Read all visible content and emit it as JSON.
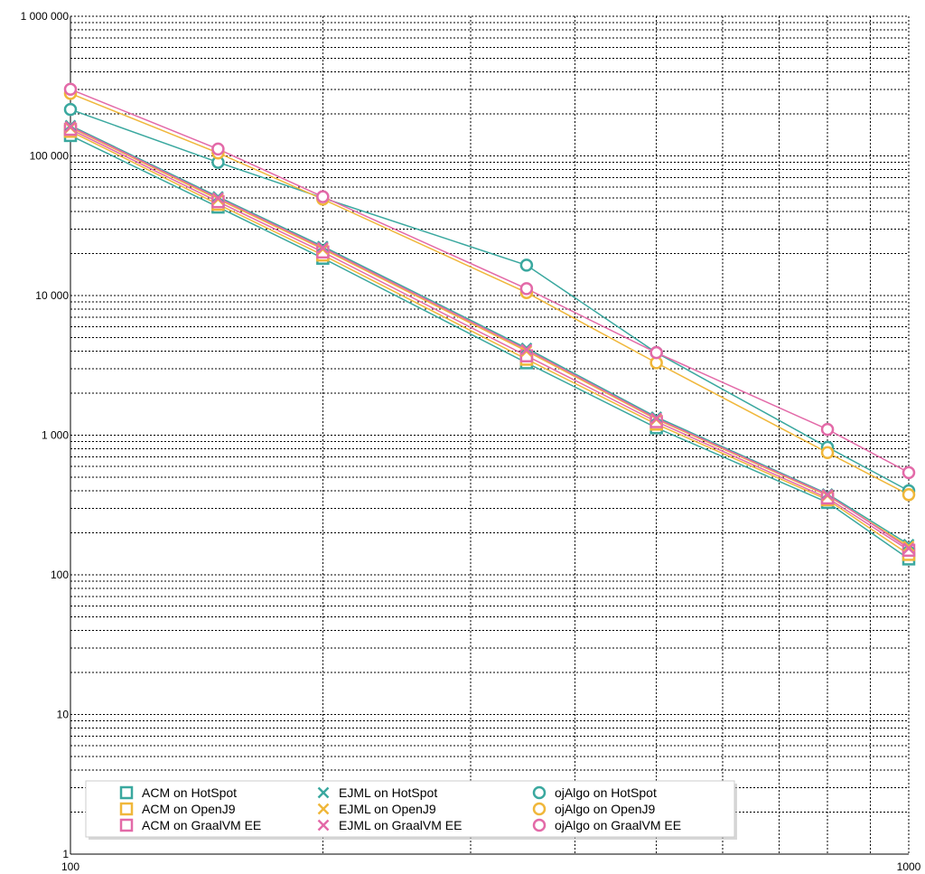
{
  "chart_data": {
    "type": "line",
    "x_scale": "log",
    "y_scale": "log",
    "xlim": [
      100,
      1000
    ],
    "ylim": [
      1,
      1000000
    ],
    "grid": true,
    "x_ticks": [
      {
        "value": 100,
        "label": "100"
      },
      {
        "value": 1000,
        "label": "1000"
      }
    ],
    "y_ticks": [
      {
        "value": 1,
        "label": "1"
      },
      {
        "value": 10,
        "label": "10"
      },
      {
        "value": 100,
        "label": "100"
      },
      {
        "value": 1000,
        "label": "1 000"
      },
      {
        "value": 10000,
        "label": "10 000"
      },
      {
        "value": 100000,
        "label": "100 000"
      },
      {
        "value": 1000000,
        "label": "1 000 000"
      }
    ],
    "x": [
      100,
      150,
      200,
      350,
      500,
      800,
      1000
    ],
    "legend_position": "bottom-left",
    "series": [
      {
        "name": "ACM on HotSpot",
        "marker": "square",
        "color": "#3aa89f",
        "values": [
          140000,
          43000,
          18500,
          3300,
          1130,
          330,
          130
        ]
      },
      {
        "name": "ACM on OpenJ9",
        "marker": "square",
        "color": "#f0b73a",
        "values": [
          150000,
          45000,
          19500,
          3500,
          1200,
          345,
          140
        ]
      },
      {
        "name": "ACM on GraalVM EE",
        "marker": "square",
        "color": "#e36aa8",
        "values": [
          155000,
          47000,
          20500,
          3700,
          1250,
          355,
          150
        ]
      },
      {
        "name": "EJML on HotSpot",
        "marker": "x",
        "color": "#3aa89f",
        "values": [
          165000,
          51000,
          22500,
          4200,
          1350,
          380,
          165
        ]
      },
      {
        "name": "EJML on OpenJ9",
        "marker": "x",
        "color": "#f0b73a",
        "values": [
          160000,
          49000,
          21500,
          4000,
          1300,
          370,
          160
        ]
      },
      {
        "name": "EJML on GraalVM EE",
        "marker": "x",
        "color": "#e36aa8",
        "values": [
          162000,
          50000,
          22000,
          4100,
          1320,
          375,
          155
        ]
      },
      {
        "name": "ojAlgo on HotSpot",
        "marker": "circle",
        "color": "#3aa89f",
        "values": [
          215000,
          90000,
          50000,
          16500,
          3900,
          820,
          400
        ]
      },
      {
        "name": "ojAlgo on OpenJ9",
        "marker": "circle",
        "color": "#f0b73a",
        "values": [
          280000,
          105000,
          49000,
          10500,
          3300,
          750,
          375
        ]
      },
      {
        "name": "ojAlgo on GraalVM EE",
        "marker": "circle",
        "color": "#e36aa8",
        "values": [
          300000,
          112000,
          51000,
          11200,
          3900,
          1100,
          540
        ]
      }
    ]
  }
}
